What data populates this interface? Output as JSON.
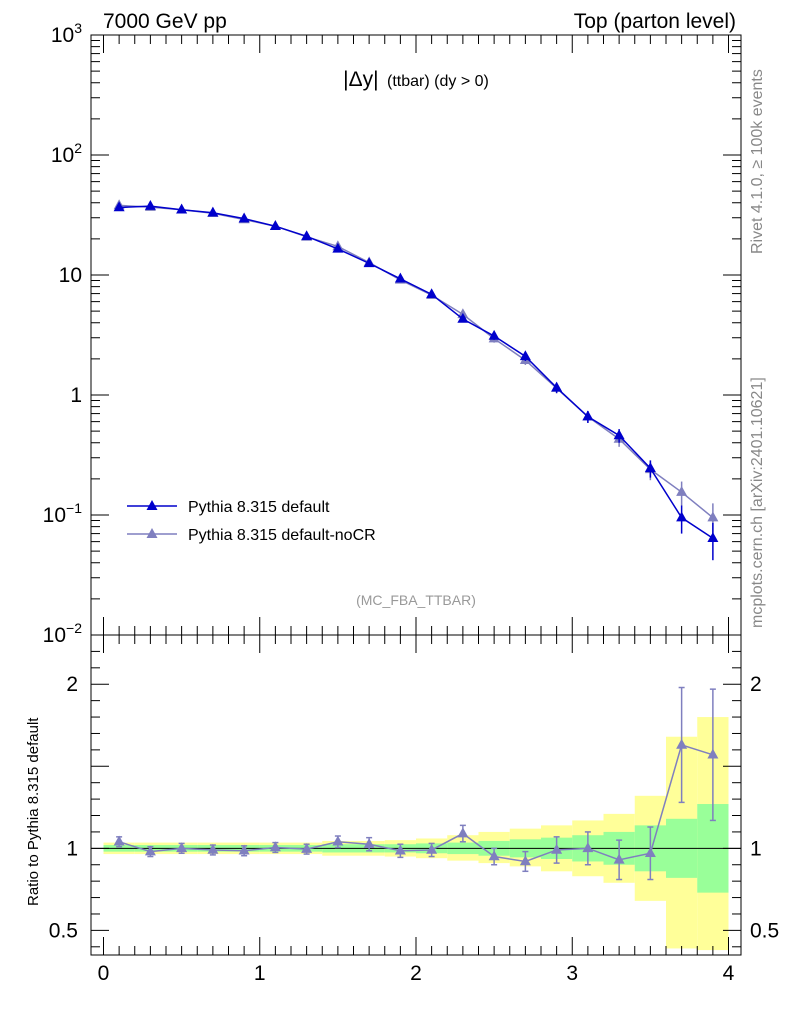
{
  "header": {
    "left": "7000 GeV pp",
    "right": "Top (parton level)"
  },
  "side": {
    "rivet": "Rivet 4.1.0, ≥ 100k events",
    "mcplots": "mcplots.cern.ch [arXiv:2401.10621]"
  },
  "colors": {
    "series_default": "#0000cc",
    "series_nocr": "#7f7fbf",
    "band_inner": "#99ff99",
    "band_outer": "#ffff99"
  },
  "chart_data": [
    {
      "type": "line",
      "title": "|Δy| (ttbar) (dy > 0)",
      "title_main": "|Δy|",
      "title_rest": "(ttbar) (dy > 0)",
      "analysis": "(MC_FBA_TTBAR)",
      "yscale": "log",
      "ylim": [
        0.01,
        1000
      ],
      "xlim": [
        -0.08,
        4.08
      ],
      "y_tick_labels": [
        "10^-2",
        "10^-1",
        "1",
        "10",
        "10^2",
        "10^3"
      ],
      "legend_position": "lower-left",
      "x": [
        0.1,
        0.3,
        0.5,
        0.7,
        0.9,
        1.1,
        1.3,
        1.5,
        1.7,
        1.9,
        2.1,
        2.3,
        2.5,
        2.7,
        2.9,
        3.1,
        3.3,
        3.5,
        3.7,
        3.9
      ],
      "series": [
        {
          "name": "Pythia 8.315 default",
          "color": "#0000cc",
          "values": [
            36.5,
            37.5,
            35.0,
            33.0,
            29.5,
            25.5,
            21.0,
            16.5,
            12.5,
            9.3,
            6.9,
            4.3,
            3.1,
            2.1,
            1.15,
            0.66,
            0.46,
            0.245,
            0.095,
            0.064
          ],
          "err": [
            1.4,
            1.4,
            1.3,
            1.2,
            1.1,
            1.0,
            0.8,
            0.7,
            0.55,
            0.45,
            0.36,
            0.28,
            0.22,
            0.18,
            0.11,
            0.075,
            0.06,
            0.04,
            0.025,
            0.022
          ]
        },
        {
          "name": "Pythia 8.315 default-noCR",
          "color": "#7f7fbf",
          "values": [
            38.0,
            36.8,
            35.0,
            32.7,
            29.0,
            25.5,
            20.8,
            17.3,
            12.7,
            9.1,
            6.8,
            4.7,
            2.95,
            1.95,
            1.14,
            0.66,
            0.43,
            0.24,
            0.155,
            0.095
          ],
          "err": [
            1.4,
            1.4,
            1.3,
            1.2,
            1.1,
            1.0,
            0.8,
            0.7,
            0.55,
            0.45,
            0.36,
            0.3,
            0.22,
            0.17,
            0.11,
            0.075,
            0.06,
            0.045,
            0.035,
            0.03
          ]
        }
      ]
    },
    {
      "type": "line",
      "ylabel": "Ratio to Pythia 8.315 default",
      "ylim": [
        0.35,
        2.3
      ],
      "xlim": [
        -0.08,
        4.08
      ],
      "x_ticks": [
        0,
        1,
        2,
        3,
        4
      ],
      "y_ticks": [
        0.5,
        1,
        2
      ],
      "x": [
        0.1,
        0.3,
        0.5,
        0.7,
        0.9,
        1.1,
        1.3,
        1.5,
        1.7,
        1.9,
        2.1,
        2.3,
        2.5,
        2.7,
        2.9,
        3.1,
        3.3,
        3.5,
        3.7,
        3.9
      ],
      "bin_edges": [
        0.0,
        0.2,
        0.4,
        0.6,
        0.8,
        1.0,
        1.2,
        1.4,
        1.6,
        1.8,
        2.0,
        2.2,
        2.4,
        2.6,
        2.8,
        3.0,
        3.2,
        3.4,
        3.6,
        3.8,
        4.0
      ],
      "band_inner": {
        "lo": [
          0.98,
          0.98,
          0.98,
          0.98,
          0.98,
          0.98,
          0.98,
          0.975,
          0.975,
          0.975,
          0.97,
          0.965,
          0.955,
          0.945,
          0.935,
          0.92,
          0.9,
          0.86,
          0.82,
          0.73
        ],
        "hi": [
          1.02,
          1.02,
          1.02,
          1.02,
          1.02,
          1.02,
          1.02,
          1.025,
          1.025,
          1.025,
          1.03,
          1.035,
          1.045,
          1.055,
          1.065,
          1.08,
          1.1,
          1.14,
          1.18,
          1.27
        ]
      },
      "band_outer": {
        "lo": [
          0.965,
          0.965,
          0.965,
          0.965,
          0.965,
          0.965,
          0.965,
          0.955,
          0.955,
          0.95,
          0.94,
          0.925,
          0.91,
          0.89,
          0.86,
          0.83,
          0.79,
          0.68,
          0.39,
          0.38
        ],
        "hi": [
          1.035,
          1.035,
          1.035,
          1.035,
          1.035,
          1.035,
          1.035,
          1.045,
          1.045,
          1.05,
          1.06,
          1.08,
          1.1,
          1.12,
          1.14,
          1.17,
          1.21,
          1.32,
          1.68,
          1.8
        ]
      },
      "series": [
        {
          "name": "Pythia 8.315 default-noCR",
          "color": "#7f7fbf",
          "values": [
            1.04,
            0.98,
            1.0,
            0.99,
            0.985,
            1.005,
            0.995,
            1.04,
            1.025,
            0.985,
            0.99,
            1.09,
            0.95,
            0.92,
            0.99,
            1.0,
            0.93,
            0.97,
            1.63,
            1.57
          ],
          "err": [
            0.03,
            0.03,
            0.03,
            0.03,
            0.03,
            0.03,
            0.03,
            0.035,
            0.04,
            0.04,
            0.04,
            0.05,
            0.05,
            0.06,
            0.08,
            0.1,
            0.12,
            0.16,
            0.35,
            0.4
          ]
        }
      ]
    }
  ]
}
